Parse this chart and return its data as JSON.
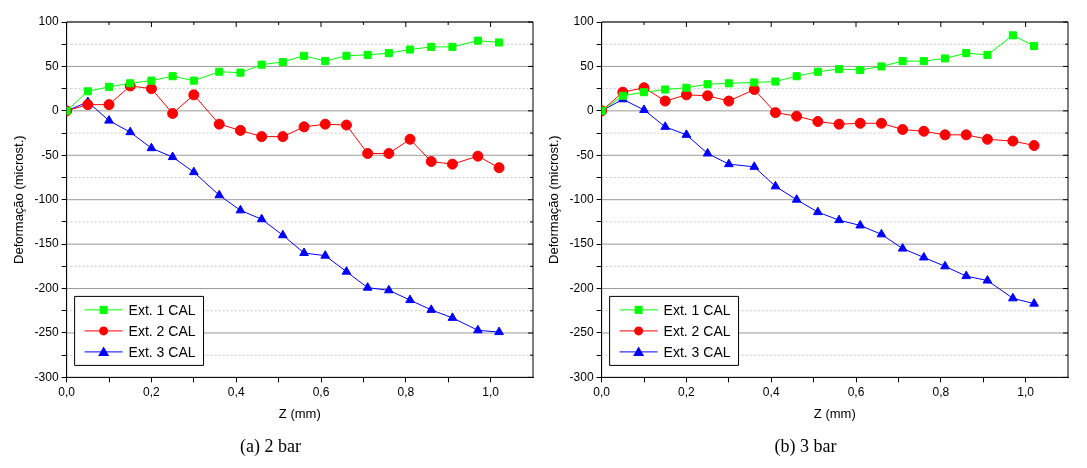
{
  "chart_data": [
    {
      "type": "line",
      "title": "(a) 2 bar",
      "xlabel": "Z (mm)",
      "ylabel": "Deformação (microst.)",
      "x": [
        0,
        0.05,
        0.1,
        0.15,
        0.2,
        0.25,
        0.3,
        0.36,
        0.41,
        0.46,
        0.51,
        0.56,
        0.61,
        0.66,
        0.71,
        0.76,
        0.81,
        0.86,
        0.91,
        0.97,
        1.02
      ],
      "series": [
        {
          "name": "Ext. 1 CAL",
          "color": "#00ff00",
          "marker": "square",
          "values": [
            0,
            22,
            27,
            31,
            34,
            39,
            34,
            44,
            43,
            52,
            55,
            62,
            56,
            62,
            63,
            65,
            69,
            72,
            72,
            79,
            77
          ]
        },
        {
          "name": "Ext. 2 CAL",
          "color": "#ff0000",
          "marker": "circle",
          "values": [
            0,
            7,
            7,
            28,
            25,
            -3,
            18,
            -15,
            -22,
            -29,
            -29,
            -18,
            -15,
            -16,
            -48,
            -48,
            -32,
            -57,
            -60,
            -51,
            -64
          ]
        },
        {
          "name": "Ext. 3 CAL",
          "color": "#0000ff",
          "marker": "triangle",
          "values": [
            0,
            10,
            -11,
            -24,
            -42,
            -52,
            -69,
            -95,
            -112,
            -122,
            -140,
            -160,
            -163,
            -181,
            -199,
            -202,
            -213,
            -224,
            -233,
            -247,
            -249
          ]
        }
      ],
      "xlim": [
        0,
        1.1
      ],
      "xticks": [
        {
          "value": 0,
          "label": "0,0"
        },
        {
          "value": 0.1,
          "label": null
        },
        {
          "value": 0.2,
          "label": "0,2"
        },
        {
          "value": 0.3,
          "label": null
        },
        {
          "value": 0.4,
          "label": "0,4"
        },
        {
          "value": 0.5,
          "label": null
        },
        {
          "value": 0.6,
          "label": "0,6"
        },
        {
          "value": 0.7,
          "label": null
        },
        {
          "value": 0.8,
          "label": "0,8"
        },
        {
          "value": 0.9,
          "label": null
        },
        {
          "value": 1.0,
          "label": "1,0"
        }
      ],
      "ylim": [
        -300,
        100
      ],
      "yticks": [
        -300,
        {
          "value": -275,
          "label": null
        },
        -250,
        {
          "value": -225,
          "label": null
        },
        -200,
        {
          "value": -175,
          "label": null
        },
        -150,
        {
          "value": -125,
          "label": null
        },
        -100,
        {
          "value": -75,
          "label": null
        },
        -50,
        {
          "value": -25,
          "label": null
        },
        0,
        {
          "value": 25,
          "label": null
        },
        50,
        {
          "value": 75,
          "label": null
        },
        100
      ],
      "grid": "y",
      "legend": "bottom left",
      "line_style": "solid"
    },
    {
      "type": "line",
      "title": "(b) 3 bar",
      "xlabel": "Z (mm)",
      "ylabel": "Deformação (microst.)",
      "x": [
        0,
        0.05,
        0.1,
        0.15,
        0.2,
        0.25,
        0.3,
        0.36,
        0.41,
        0.46,
        0.51,
        0.56,
        0.61,
        0.66,
        0.71,
        0.76,
        0.81,
        0.86,
        0.91,
        0.97,
        1.02
      ],
      "series": [
        {
          "name": "Ext. 1 CAL",
          "color": "#00ff00",
          "marker": "square",
          "values": [
            0,
            17,
            21,
            24,
            26,
            30,
            31,
            32,
            33,
            39,
            44,
            47,
            46,
            50,
            56,
            56,
            59,
            65,
            63,
            85,
            73
          ]
        },
        {
          "name": "Ext. 2 CAL",
          "color": "#ff0000",
          "marker": "circle",
          "values": [
            0,
            21,
            26,
            11,
            18,
            17,
            11,
            24,
            -2,
            -6,
            -12,
            -15,
            -14,
            -14,
            -21,
            -23,
            -27,
            -27,
            -32,
            -34,
            -39
          ]
        },
        {
          "name": "Ext. 3 CAL",
          "color": "#0000ff",
          "marker": "triangle",
          "values": [
            0,
            13,
            1,
            -18,
            -27,
            -48,
            -60,
            -63,
            -85,
            -100,
            -114,
            -123,
            -129,
            -139,
            -155,
            -165,
            -175,
            -186,
            -191,
            -211,
            -217
          ]
        }
      ],
      "xlim": [
        0,
        1.1
      ],
      "xticks": [
        {
          "value": 0,
          "label": "0,0"
        },
        {
          "value": 0.1,
          "label": null
        },
        {
          "value": 0.2,
          "label": "0,2"
        },
        {
          "value": 0.3,
          "label": null
        },
        {
          "value": 0.4,
          "label": "0,4"
        },
        {
          "value": 0.5,
          "label": null
        },
        {
          "value": 0.6,
          "label": "0,6"
        },
        {
          "value": 0.7,
          "label": null
        },
        {
          "value": 0.8,
          "label": "0,8"
        },
        {
          "value": 0.9,
          "label": null
        },
        {
          "value": 1.0,
          "label": "1,0"
        }
      ],
      "ylim": [
        -300,
        100
      ],
      "yticks": [
        -300,
        {
          "value": -275,
          "label": null
        },
        -250,
        {
          "value": -225,
          "label": null
        },
        -200,
        {
          "value": -175,
          "label": null
        },
        -150,
        {
          "value": -125,
          "label": null
        },
        -100,
        {
          "value": -75,
          "label": null
        },
        -50,
        {
          "value": -25,
          "label": null
        },
        0,
        {
          "value": 25,
          "label": null
        },
        50,
        {
          "value": 75,
          "label": null
        },
        100
      ],
      "grid": "y",
      "legend": "bottom left",
      "line_style": "solid"
    }
  ]
}
